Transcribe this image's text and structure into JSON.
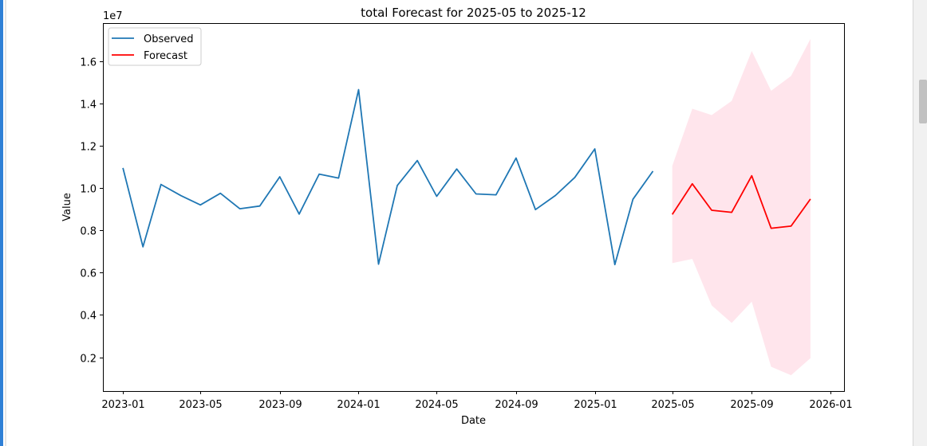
{
  "chart_data": {
    "type": "line",
    "title": "total Forecast for 2025-05 to 2025-12",
    "xlabel": "Date",
    "ylabel": "Value",
    "y_offset_text": "1e7",
    "y_multiplier": 10000000,
    "ylim": [
      0.04,
      1.78
    ],
    "xlim": [
      "2022-12-01",
      "2026-01-22"
    ],
    "x_ticks": [
      "2023-01",
      "2023-05",
      "2023-09",
      "2024-01",
      "2024-05",
      "2024-09",
      "2025-01",
      "2025-05",
      "2025-09",
      "2026-01"
    ],
    "y_ticks": [
      "0.2",
      "0.4",
      "0.6",
      "0.8",
      "1.0",
      "1.2",
      "1.4",
      "1.6"
    ],
    "grid": false,
    "legend_position": "upper-left",
    "series": [
      {
        "name": "Observed",
        "color": "#1f77b4",
        "x": [
          "2023-01",
          "2023-02",
          "2023-03",
          "2023-04",
          "2023-05",
          "2023-06",
          "2023-07",
          "2023-08",
          "2023-09",
          "2023-10",
          "2023-11",
          "2023-12",
          "2024-01",
          "2024-02",
          "2024-03",
          "2024-04",
          "2024-05",
          "2024-06",
          "2024-07",
          "2024-08",
          "2024-09",
          "2024-10",
          "2024-11",
          "2024-12",
          "2025-01",
          "2025-02",
          "2025-03",
          "2025-04"
        ],
        "y": [
          1.095,
          0.722,
          1.017,
          0.964,
          0.92,
          0.975,
          0.902,
          0.915,
          1.053,
          0.877,
          1.066,
          1.047,
          1.465,
          0.64,
          1.012,
          1.13,
          0.961,
          1.09,
          0.972,
          0.968,
          1.142,
          0.898,
          0.965,
          1.05,
          1.185,
          0.638,
          0.947,
          1.08
        ]
      },
      {
        "name": "Forecast",
        "color": "#ff0000",
        "x": [
          "2025-05",
          "2025-06",
          "2025-07",
          "2025-08",
          "2025-09",
          "2025-10",
          "2025-11",
          "2025-12"
        ],
        "y": [
          0.875,
          1.02,
          0.895,
          0.885,
          1.058,
          0.81,
          0.82,
          0.948
        ]
      }
    ],
    "confidence_band": {
      "color": "#ffe5ec",
      "x": [
        "2025-05",
        "2025-06",
        "2025-07",
        "2025-08",
        "2025-09",
        "2025-10",
        "2025-11",
        "2025-12"
      ],
      "lower": [
        0.645,
        0.665,
        0.445,
        0.362,
        0.463,
        0.155,
        0.115,
        0.195
      ],
      "upper": [
        1.105,
        1.375,
        1.345,
        1.412,
        1.648,
        1.46,
        1.53,
        1.705
      ]
    }
  }
}
